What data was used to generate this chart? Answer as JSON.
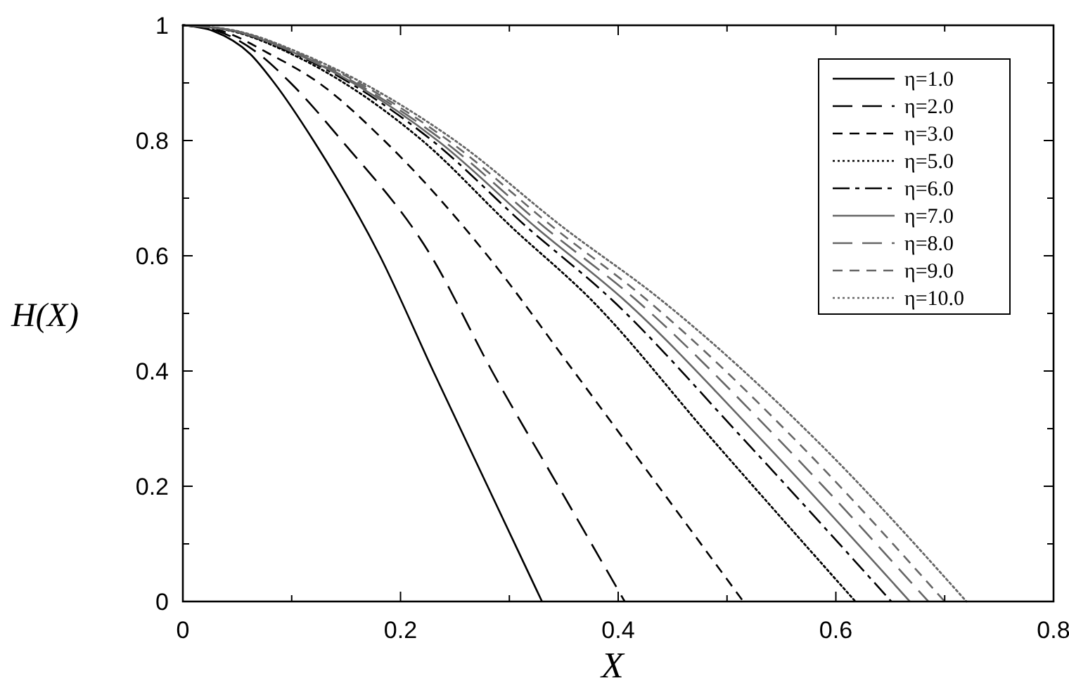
{
  "chart_data": {
    "type": "line",
    "xlabel": "X",
    "ylabel": "H(X)",
    "xlim": [
      0,
      0.8
    ],
    "ylim": [
      0,
      1
    ],
    "xticks": [
      0,
      {
        "value": 0.1,
        "label": null
      },
      0.2,
      {
        "value": 0.3,
        "label": null
      },
      0.4,
      {
        "value": 0.5,
        "label": null
      },
      0.6,
      {
        "value": 0.7,
        "label": null
      },
      0.8
    ],
    "yticks": [
      0,
      {
        "value": 0.1,
        "label": null
      },
      0.2,
      {
        "value": 0.3,
        "label": null
      },
      0.4,
      {
        "value": 0.5,
        "label": null
      },
      0.6,
      {
        "value": 0.7,
        "label": null
      },
      0.8,
      {
        "value": 0.9,
        "label": null
      },
      1
    ],
    "grid": false,
    "legend": "top right",
    "series": [
      {
        "name": "η=1.0",
        "color": "#000000",
        "line_style": "solid",
        "x": [
          0,
          0.028,
          0.062,
          0.084,
          0.12,
          0.181,
          0.23,
          0.28,
          0.33
        ],
        "values": [
          1,
          0.99,
          0.95,
          0.9,
          0.8,
          0.6,
          0.4,
          0.2,
          0
        ]
      },
      {
        "name": "η=2.0",
        "color": "#000000",
        "line_style": "longdash",
        "x": [
          0,
          0.032,
          0.07,
          0.099,
          0.146,
          0.228,
          0.284,
          0.345,
          0.406
        ],
        "values": [
          1,
          0.99,
          0.95,
          0.9,
          0.8,
          0.6,
          0.4,
          0.2,
          0
        ]
      },
      {
        "name": "η=3.0",
        "color": "#000000",
        "line_style": "dashed",
        "x": [
          0,
          0.036,
          0.08,
          0.125,
          0.185,
          0.28,
          0.359,
          0.437,
          0.515
        ],
        "values": [
          1,
          0.99,
          0.95,
          0.9,
          0.8,
          0.6,
          0.4,
          0.2,
          0
        ]
      },
      {
        "name": "η=5.0",
        "color": "#000000",
        "line_style": "dotted",
        "x": [
          0,
          0.045,
          0.1,
          0.22,
          0.302,
          0.375,
          0.487,
          0.618
        ],
        "values": [
          1,
          0.99,
          0.95,
          0.8,
          0.65,
          0.524,
          0.28,
          0
        ]
      },
      {
        "name": "η=6.0",
        "color": "#000000",
        "line_style": "dashdot",
        "x": [
          0,
          0.046,
          0.103,
          0.229,
          0.316,
          0.394,
          0.516,
          0.651
        ],
        "values": [
          1,
          0.99,
          0.95,
          0.8,
          0.65,
          0.524,
          0.28,
          0
        ]
      },
      {
        "name": "η=7.0",
        "color": "#666666",
        "line_style": "solid",
        "x": [
          0,
          0.047,
          0.105,
          0.234,
          0.324,
          0.405,
          0.532,
          0.668
        ],
        "values": [
          1,
          0.99,
          0.95,
          0.8,
          0.65,
          0.524,
          0.28,
          0
        ]
      },
      {
        "name": "η=8.0",
        "color": "#666666",
        "line_style": "longdash",
        "x": [
          0,
          0.048,
          0.106,
          0.239,
          0.332,
          0.416,
          0.548,
          0.685
        ],
        "values": [
          1,
          0.99,
          0.95,
          0.8,
          0.65,
          0.524,
          0.28,
          0
        ]
      },
      {
        "name": "η=9.0",
        "color": "#666666",
        "line_style": "dashed",
        "x": [
          0,
          0.049,
          0.108,
          0.244,
          0.34,
          0.426,
          0.563,
          0.7
        ],
        "values": [
          1,
          0.99,
          0.95,
          0.8,
          0.65,
          0.524,
          0.28,
          0
        ]
      },
      {
        "name": "η=10.0",
        "color": "#666666",
        "line_style": "dotted",
        "x": [
          0,
          0.05,
          0.11,
          0.25,
          0.349,
          0.439,
          0.582,
          0.72
        ],
        "values": [
          1,
          0.99,
          0.95,
          0.8,
          0.65,
          0.524,
          0.28,
          0
        ]
      }
    ]
  }
}
